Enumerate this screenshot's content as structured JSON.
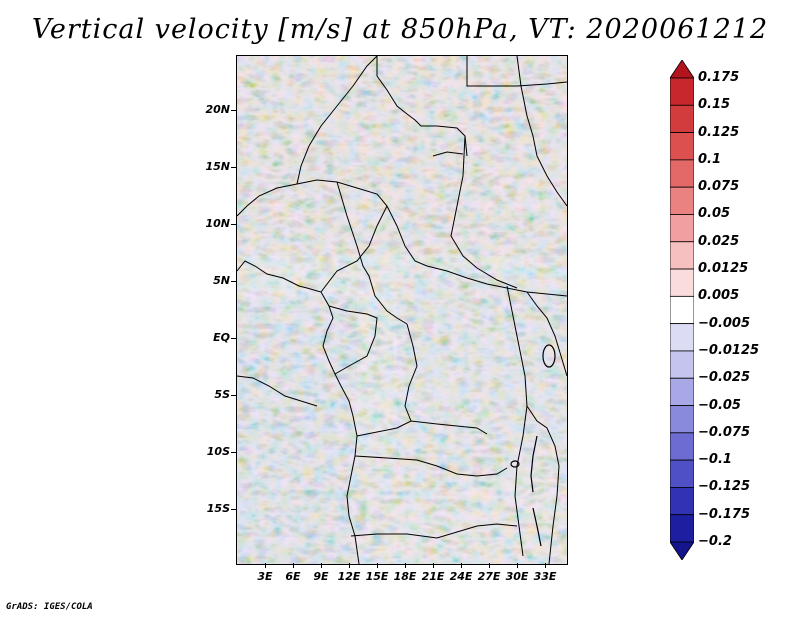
{
  "title": "Vertical velocity [m/s] at 850hPa, VT: 2020061212",
  "footer": "GrADS: IGES/COLA",
  "lat_labels": [
    "20N",
    "15N",
    "10N",
    "5N",
    "EQ",
    "5S",
    "10S",
    "15S"
  ],
  "lon_labels": [
    "3E",
    "6E",
    "9E",
    "12E",
    "15E",
    "18E",
    "21E",
    "24E",
    "27E",
    "30E",
    "33E"
  ],
  "colorbar": {
    "levels": [
      "0.175",
      "0.15",
      "0.125",
      "0.1",
      "0.075",
      "0.05",
      "0.025",
      "0.0125",
      "0.005",
      "−0.005",
      "−0.0125",
      "−0.025",
      "−0.05",
      "−0.075",
      "−0.1",
      "−0.125",
      "−0.175",
      "−0.2"
    ],
    "colors": [
      "#b4141e",
      "#c8282d",
      "#d23c3c",
      "#dc5050",
      "#e36868",
      "#ea8282",
      "#f0a0a0",
      "#f6c0c0",
      "#fadcdc",
      "#ffffff",
      "#dcdcf4",
      "#c4c4ee",
      "#a8a8e6",
      "#8a8adc",
      "#6c6cd2",
      "#5050c6",
      "#3232b4",
      "#1e1ea0",
      "#14148c"
    ]
  }
}
